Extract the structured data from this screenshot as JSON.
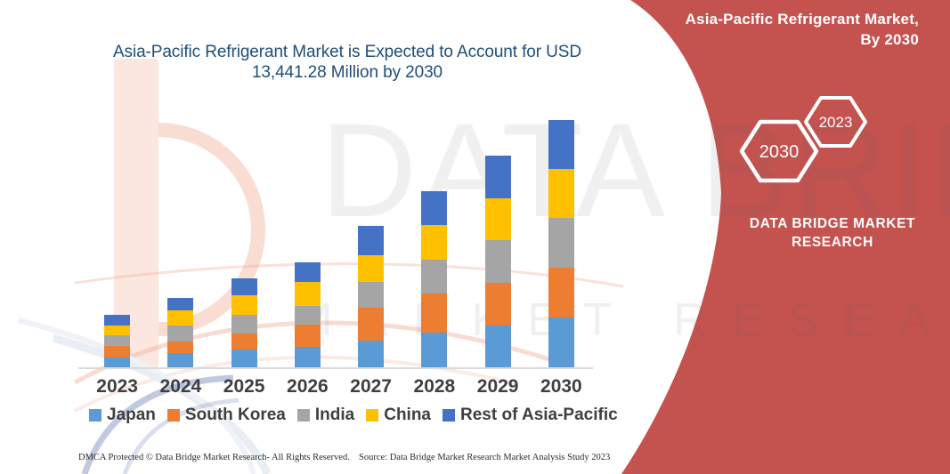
{
  "header": {
    "market_label_line1": "Asia-Pacific Refrigerant Market,",
    "market_label_line2": "By 2030",
    "hexagon_years": [
      "2030",
      "2023"
    ],
    "brand_line1": "DATA BRIDGE MARKET",
    "brand_line2": "RESEARCH",
    "panel_color": "#C4524F"
  },
  "watermark": {
    "line1": "DATA BRIDGE",
    "line2": "MARKET RESEARCH"
  },
  "chart_data": {
    "type": "bar",
    "stacked": true,
    "title": "Asia-Pacific Refrigerant Market is Expected to Account for USD 13,441.28 Million by 2030",
    "title_lines": [
      "Asia-Pacific Refrigerant Market is Expected to Account for USD",
      "13,441.28 Million by 2030"
    ],
    "title_color": "#1F4E79",
    "unit": "USD Million",
    "categories": [
      "2023",
      "2024",
      "2025",
      "2026",
      "2027",
      "2028",
      "2029",
      "2030"
    ],
    "series": [
      {
        "name": "Japan",
        "color": "#5B9BD5",
        "values": [
          516,
          758,
          967,
          1096,
          1451,
          1870,
          2273,
          2708
        ]
      },
      {
        "name": "South Korea",
        "color": "#ED7D31",
        "values": [
          645,
          645,
          886,
          1209,
          1773,
          2144,
          2305,
          2708
        ]
      },
      {
        "name": "India",
        "color": "#A5A5A5",
        "values": [
          580,
          886,
          1015,
          1048,
          1418,
          1838,
          2337,
          2692
        ]
      },
      {
        "name": "China",
        "color": "#FFC000",
        "values": [
          548,
          806,
          1031,
          1290,
          1434,
          1870,
          2257,
          2692
        ]
      },
      {
        "name": "Rest of Asia-Pacific",
        "color": "#4472C4",
        "values": [
          580,
          693,
          934,
          1080,
          1629,
          1854,
          2321,
          2641.28
        ]
      }
    ],
    "totals_2030": 13441.28,
    "ylim": [
      0,
      13441.28
    ],
    "grid": false,
    "y_axis_visible": false,
    "legend_position": "bottom"
  },
  "footer": {
    "dmca": "DMCA Protected © Data Bridge Market Research-  All Rights Reserved.",
    "source": "Source: Data Bridge Market Research  Market Analysis Study 2023"
  }
}
